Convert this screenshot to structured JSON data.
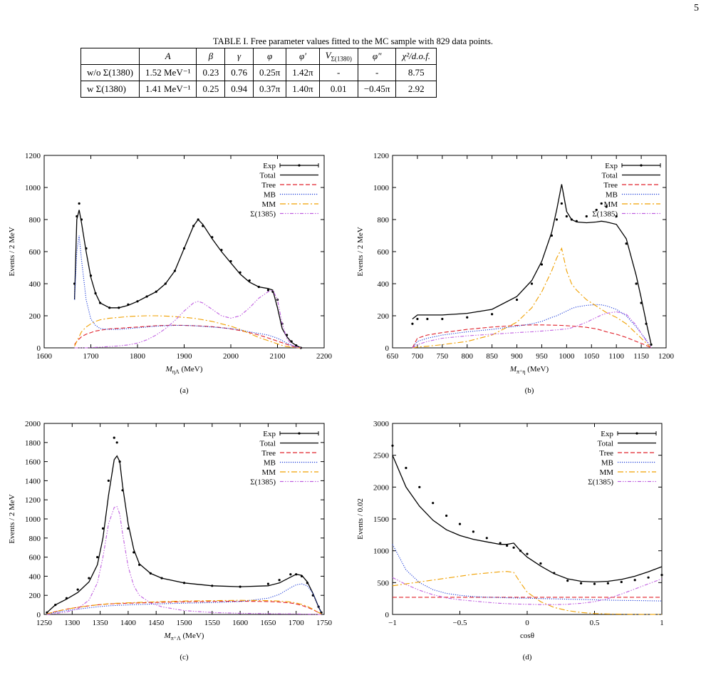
{
  "page_number": "5",
  "table": {
    "caption": "TABLE I. Free parameter values fitted to the MC sample with 829 data points.",
    "header": [
      "A",
      "β",
      "γ",
      "φ",
      "φ′",
      {
        "text": "V",
        "sub": "Σ(1380)"
      },
      "φ″",
      "χ²/d.o.f."
    ],
    "rows": [
      [
        "w/o Σ(1380)",
        "1.52 MeV⁻¹",
        "0.23",
        "0.76",
        "0.25π",
        "1.42π",
        "-",
        "-",
        "8.75"
      ],
      [
        "w Σ(1380)",
        "1.41 MeV⁻¹",
        "0.25",
        "0.94",
        "0.37π",
        "1.40π",
        "0.01",
        "−0.45π",
        "2.92"
      ]
    ]
  },
  "chart_data": [
    {
      "type": "line",
      "caption": "(a)",
      "ylabel": "Events / 2 MeV",
      "xlabel": {
        "text": "M",
        "sub": "ηΛ",
        "unit": " (MeV)"
      },
      "xlim": [
        1600,
        2200
      ],
      "xticks": [
        1600,
        1700,
        1800,
        1900,
        2000,
        2100,
        2200
      ],
      "ylim": [
        0,
        1200
      ],
      "yticks": [
        0,
        200,
        400,
        600,
        800,
        1000,
        1200
      ],
      "legend": "upper right",
      "x": [
        1665,
        1670,
        1675,
        1680,
        1690,
        1700,
        1710,
        1720,
        1740,
        1760,
        1780,
        1800,
        1820,
        1840,
        1860,
        1880,
        1900,
        1920,
        1930,
        1940,
        1960,
        1980,
        2000,
        2020,
        2040,
        2060,
        2080,
        2090,
        2100,
        2110,
        2120,
        2130,
        2140,
        2150
      ],
      "series": [
        {
          "name": "Exp",
          "color": "#000000",
          "style": "points",
          "values": [
            400,
            820,
            900,
            800,
            620,
            450,
            340,
            280,
            250,
            250,
            270,
            290,
            320,
            350,
            400,
            480,
            620,
            760,
            800,
            760,
            690,
            610,
            540,
            470,
            420,
            380,
            360,
            350,
            300,
            150,
            80,
            40,
            15,
            0
          ]
        },
        {
          "name": "Total",
          "color": "#000000",
          "style": "solid",
          "values": [
            300,
            800,
            860,
            780,
            600,
            440,
            340,
            280,
            250,
            250,
            265,
            290,
            320,
            350,
            400,
            480,
            620,
            760,
            800,
            770,
            680,
            600,
            530,
            460,
            410,
            380,
            370,
            360,
            250,
            120,
            70,
            35,
            15,
            0
          ]
        },
        {
          "name": "Tree",
          "color": "#e0202a",
          "style": "dashed",
          "values": [
            20,
            40,
            55,
            70,
            85,
            95,
            105,
            110,
            118,
            122,
            126,
            130,
            134,
            138,
            140,
            141,
            140,
            138,
            137,
            136,
            132,
            126,
            118,
            108,
            95,
            80,
            62,
            52,
            42,
            32,
            22,
            12,
            5,
            0
          ]
        },
        {
          "name": "MB",
          "color": "#1a3ad8",
          "style": "dotted",
          "values": [
            300,
            600,
            700,
            550,
            300,
            180,
            140,
            120,
            115,
            115,
            120,
            125,
            130,
            135,
            138,
            140,
            140,
            138,
            136,
            134,
            130,
            125,
            120,
            112,
            100,
            90,
            80,
            70,
            60,
            45,
            30,
            15,
            6,
            0
          ]
        },
        {
          "name": "MM",
          "color": "#f0a000",
          "style": "dash-dot",
          "values": [
            10,
            40,
            70,
            100,
            130,
            150,
            165,
            175,
            185,
            190,
            195,
            198,
            200,
            200,
            198,
            195,
            190,
            185,
            180,
            175,
            165,
            150,
            135,
            115,
            90,
            65,
            45,
            35,
            25,
            15,
            8,
            4,
            2,
            0
          ]
        },
        {
          "name": "Σ(1385)",
          "color": "#c060e0",
          "style": "dash-dot-dot",
          "values": [
            0,
            0,
            0,
            0,
            0,
            2,
            3,
            5,
            8,
            12,
            18,
            30,
            50,
            80,
            120,
            170,
            230,
            280,
            290,
            280,
            240,
            200,
            185,
            200,
            250,
            310,
            350,
            360,
            300,
            150,
            60,
            20,
            5,
            0
          ]
        }
      ]
    },
    {
      "type": "line",
      "caption": "(b)",
      "ylabel": "Events / 2 MeV",
      "xlabel": {
        "text": "M",
        "sub": "π⁺η",
        "unit": " (MeV)"
      },
      "xlim": [
        650,
        1200
      ],
      "xticks": [
        650,
        700,
        750,
        800,
        850,
        900,
        950,
        1000,
        1050,
        1100,
        1150,
        1200
      ],
      "ylim": [
        0,
        1200
      ],
      "yticks": [
        0,
        200,
        400,
        600,
        800,
        1000,
        1200
      ],
      "legend": "upper right",
      "x": [
        690,
        700,
        720,
        750,
        800,
        850,
        900,
        930,
        950,
        970,
        980,
        990,
        1000,
        1010,
        1020,
        1040,
        1060,
        1070,
        1080,
        1100,
        1120,
        1140,
        1150,
        1160,
        1170
      ],
      "series": [
        {
          "name": "Exp",
          "color": "#000000",
          "style": "points",
          "values": [
            150,
            180,
            180,
            180,
            190,
            210,
            300,
            400,
            520,
            700,
            800,
            900,
            820,
            800,
            790,
            820,
            860,
            900,
            880,
            820,
            650,
            400,
            280,
            150,
            20
          ]
        },
        {
          "name": "Total",
          "color": "#000000",
          "style": "solid",
          "values": [
            180,
            205,
            205,
            205,
            215,
            240,
            320,
            420,
            540,
            720,
            860,
            1020,
            850,
            800,
            785,
            780,
            785,
            790,
            785,
            770,
            680,
            450,
            310,
            160,
            20
          ]
        },
        {
          "name": "Tree",
          "color": "#e0202a",
          "style": "dashed",
          "values": [
            0,
            60,
            80,
            95,
            115,
            130,
            140,
            143,
            143,
            142,
            141,
            140,
            138,
            136,
            134,
            128,
            118,
            110,
            100,
            85,
            65,
            40,
            28,
            15,
            0
          ]
        },
        {
          "name": "MB",
          "color": "#1a3ad8",
          "style": "dotted",
          "values": [
            0,
            40,
            60,
            80,
            100,
            115,
            135,
            150,
            165,
            190,
            200,
            215,
            230,
            245,
            255,
            265,
            270,
            268,
            262,
            240,
            200,
            130,
            90,
            50,
            0
          ]
        },
        {
          "name": "MM",
          "color": "#f0a000",
          "style": "dash-dot",
          "values": [
            0,
            5,
            10,
            20,
            40,
            80,
            160,
            250,
            350,
            480,
            560,
            620,
            480,
            400,
            360,
            300,
            260,
            240,
            220,
            190,
            150,
            90,
            60,
            30,
            0
          ]
        },
        {
          "name": "Σ(1385)",
          "color": "#c060e0",
          "style": "dash-dot-dot",
          "values": [
            0,
            20,
            40,
            60,
            75,
            85,
            95,
            100,
            105,
            110,
            112,
            115,
            118,
            125,
            135,
            160,
            190,
            205,
            215,
            225,
            210,
            140,
            90,
            45,
            0
          ]
        }
      ]
    },
    {
      "type": "line",
      "caption": "(c)",
      "ylabel": "Events / 2 MeV",
      "xlabel": {
        "text": "M",
        "sub": "π⁺Λ",
        "unit": " (MeV)"
      },
      "xlim": [
        1250,
        1750
      ],
      "xticks": [
        1250,
        1300,
        1350,
        1400,
        1450,
        1500,
        1550,
        1600,
        1650,
        1700,
        1750
      ],
      "ylim": [
        0,
        2000
      ],
      "yticks": [
        0,
        200,
        400,
        600,
        800,
        1000,
        1200,
        1400,
        1600,
        1800,
        2000
      ],
      "legend": "upper right",
      "x": [
        1255,
        1270,
        1290,
        1310,
        1330,
        1345,
        1355,
        1365,
        1375,
        1380,
        1385,
        1390,
        1400,
        1410,
        1420,
        1440,
        1460,
        1500,
        1550,
        1600,
        1650,
        1670,
        1690,
        1700,
        1710,
        1720,
        1730,
        1740,
        1745
      ],
      "series": [
        {
          "name": "Exp",
          "color": "#000000",
          "style": "points",
          "values": [
            20,
            100,
            170,
            260,
            380,
            600,
            900,
            1400,
            1850,
            1800,
            1600,
            1300,
            900,
            650,
            520,
            430,
            380,
            330,
            300,
            290,
            320,
            360,
            420,
            420,
            400,
            330,
            200,
            80,
            20
          ]
        },
        {
          "name": "Total",
          "color": "#000000",
          "style": "solid",
          "values": [
            20,
            100,
            160,
            230,
            340,
            520,
            800,
            1250,
            1620,
            1660,
            1600,
            1350,
            950,
            680,
            530,
            430,
            380,
            330,
            300,
            290,
            300,
            330,
            390,
            420,
            410,
            340,
            220,
            80,
            20
          ]
        },
        {
          "name": "Tree",
          "color": "#e0202a",
          "style": "dashed",
          "values": [
            5,
            30,
            55,
            75,
            90,
            100,
            105,
            110,
            112,
            113,
            114,
            115,
            117,
            119,
            121,
            124,
            127,
            132,
            136,
            138,
            135,
            130,
            120,
            110,
            95,
            75,
            50,
            20,
            5
          ]
        },
        {
          "name": "MB",
          "color": "#1a3ad8",
          "style": "dotted",
          "values": [
            5,
            20,
            40,
            55,
            70,
            80,
            85,
            90,
            93,
            95,
            96,
            97,
            100,
            102,
            104,
            108,
            112,
            118,
            125,
            135,
            170,
            210,
            280,
            310,
            320,
            300,
            220,
            80,
            20
          ]
        },
        {
          "name": "MM",
          "color": "#f0a000",
          "style": "dash-dot",
          "values": [
            5,
            30,
            55,
            75,
            90,
            100,
            107,
            112,
            115,
            117,
            118,
            120,
            122,
            124,
            126,
            130,
            134,
            140,
            145,
            148,
            145,
            140,
            130,
            120,
            105,
            85,
            55,
            20,
            5
          ]
        },
        {
          "name": "Σ(1385)",
          "color": "#c060e0",
          "style": "dash-dot-dot",
          "values": [
            0,
            10,
            25,
            60,
            150,
            330,
            600,
            950,
            1120,
            1130,
            1050,
            850,
            500,
            300,
            200,
            120,
            80,
            40,
            20,
            12,
            8,
            7,
            6,
            5,
            4,
            3,
            2,
            1,
            0
          ]
        }
      ]
    },
    {
      "type": "line",
      "caption": "(d)",
      "ylabel": "Events / 0.02",
      "xlabel": {
        "text": "cosθ"
      },
      "xlim": [
        -1,
        1
      ],
      "xticks": [
        {
          "value": -1,
          "label": "−1"
        },
        {
          "value": -0.5,
          "label": "−0.5"
        },
        0,
        0.5,
        1
      ],
      "ylim": [
        0,
        3000
      ],
      "yticks": [
        0,
        500,
        1000,
        1500,
        2000,
        2500,
        3000
      ],
      "legend": "upper right",
      "x": [
        -1,
        -0.9,
        -0.8,
        -0.7,
        -0.6,
        -0.5,
        -0.4,
        -0.3,
        -0.2,
        -0.15,
        -0.1,
        -0.05,
        0,
        0.1,
        0.2,
        0.3,
        0.4,
        0.5,
        0.6,
        0.7,
        0.8,
        0.9,
        1
      ],
      "series": [
        {
          "name": "Exp",
          "color": "#000000",
          "style": "points",
          "values": [
            2650,
            2300,
            2000,
            1750,
            1550,
            1420,
            1300,
            1200,
            1120,
            1080,
            1050,
            1000,
            950,
            800,
            650,
            530,
            490,
            480,
            490,
            510,
            540,
            580,
            620
          ]
        },
        {
          "name": "Total",
          "color": "#000000",
          "style": "solid",
          "values": [
            2500,
            2000,
            1700,
            1480,
            1330,
            1240,
            1180,
            1140,
            1100,
            1100,
            1120,
            1000,
            900,
            760,
            640,
            560,
            520,
            510,
            520,
            550,
            600,
            670,
            750
          ]
        },
        {
          "name": "Tree",
          "color": "#e0202a",
          "style": "dashed",
          "values": [
            270,
            270,
            270,
            270,
            270,
            270,
            270,
            270,
            270,
            270,
            270,
            270,
            270,
            270,
            270,
            270,
            270,
            270,
            270,
            270,
            270,
            270,
            270
          ]
        },
        {
          "name": "MB",
          "color": "#1a3ad8",
          "style": "dotted",
          "values": [
            1100,
            700,
            500,
            390,
            330,
            300,
            280,
            270,
            265,
            262,
            260,
            258,
            255,
            250,
            245,
            240,
            235,
            230,
            225,
            220,
            218,
            215,
            212
          ]
        },
        {
          "name": "MM",
          "color": "#f0a000",
          "style": "dash-dot",
          "values": [
            450,
            480,
            510,
            540,
            570,
            600,
            630,
            650,
            670,
            675,
            660,
            500,
            350,
            200,
            110,
            60,
            30,
            15,
            8,
            4,
            2,
            1,
            0
          ]
        },
        {
          "name": "Σ(1385)",
          "color": "#c060e0",
          "style": "dash-dot-dot",
          "values": [
            580,
            470,
            380,
            310,
            260,
            230,
            210,
            190,
            175,
            170,
            165,
            162,
            160,
            155,
            155,
            160,
            175,
            200,
            250,
            320,
            400,
            480,
            560
          ]
        }
      ]
    }
  ]
}
